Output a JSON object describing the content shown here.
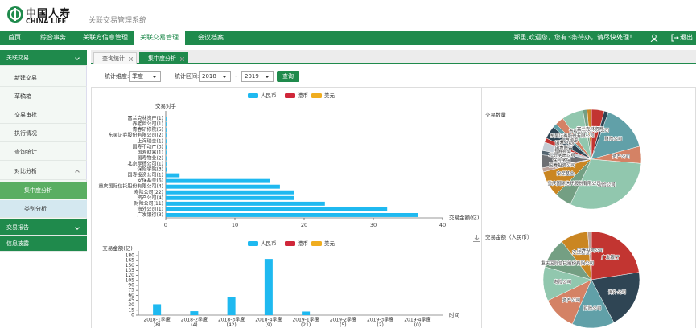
{
  "header": {
    "logo_cn": "中国人寿",
    "logo_en": "CHINA LIFE",
    "system": "关联交易管理系统"
  },
  "nav": {
    "items": [
      "首页",
      "综合事务",
      "关联方信息管理",
      "关联交易管理",
      "会议档案"
    ],
    "active": 3,
    "welcome": "郑重,欢迎您，您有3条待办，请尽快处理！",
    "logout": "退出"
  },
  "sidebar": {
    "title": "关联交易",
    "items": [
      "新建交易",
      "草稿箱",
      "交易审批",
      "执行情况",
      "查询统计",
      "对比分析"
    ],
    "sub_items": [
      "集中度分析",
      "类别分析"
    ],
    "active_sub": 0,
    "sections": [
      "交易报告",
      "信息披露"
    ]
  },
  "tabs": {
    "items": [
      "查询统计",
      "集中度分析"
    ],
    "active": 1
  },
  "filter": {
    "dimension_label": "统计维度:",
    "dimension": "季度",
    "range_label": "统计区间:",
    "from": "2018",
    "separator": "-",
    "to": "2019",
    "button": "查询"
  },
  "chart_data": [
    {
      "type": "hbar",
      "y_label": "交易对手",
      "x_label": "交易金额(亿)",
      "categories": [
        "富兰克林资产(1)",
        "养老险公司(1)",
        "青春研修院(5)",
        "东吴证券股份有限公司(2)",
        "上海瑞金(1)",
        "国寿不动产(3)",
        "国寿财富(1)",
        "国寿物业(2)",
        "北京厚德公司(1)",
        "保险学院(3)",
        "国寿投资公司(1)",
        "安保基金(6)",
        "重庆国际信托股份有限公司(4)",
        "寿险公司(22)",
        "资产公司(4)",
        "财险公司(11)",
        "海外公司(1)",
        "广发银行(3)"
      ],
      "series": [
        {
          "name": "人民币",
          "color": "#1fb9f0",
          "values": [
            0.1,
            0.1,
            0.1,
            0.1,
            0.1,
            0.2,
            0.1,
            0.1,
            0.1,
            0.2,
            2,
            15,
            16.5,
            18.5,
            18.5,
            23,
            32,
            36.5
          ]
        },
        {
          "name": "港币",
          "color": "#d0273a",
          "values": [
            0,
            0,
            0,
            0,
            0,
            0,
            0,
            0,
            0,
            0,
            0,
            0,
            0,
            0,
            0,
            0,
            0,
            0
          ]
        },
        {
          "name": "美元",
          "color": "#f0ad1f",
          "values": [
            0,
            0,
            0,
            0,
            0,
            0,
            0,
            0,
            0,
            0,
            0,
            0,
            0,
            0,
            0,
            0,
            0,
            0
          ]
        }
      ],
      "xlim": [
        0,
        40
      ],
      "xticks": [
        0,
        10,
        20,
        30,
        40
      ]
    },
    {
      "type": "bar",
      "y_label": "交易金额(亿)",
      "x_label": "时间",
      "categories": [
        "2018-1季度",
        "2018-2季度",
        "2018-3季度",
        "2018-4季度",
        "2019-1季度",
        "2019-2季度",
        "2019-3季度",
        "2019-4季度"
      ],
      "category_counts": [
        "(8)",
        "(4)",
        "(42)",
        "(9)",
        "(21)",
        "(5)",
        "(2)",
        "(0)"
      ],
      "series": [
        {
          "name": "人民币",
          "color": "#1fb9f0",
          "values": [
            33,
            12,
            55,
            170,
            11,
            0,
            0,
            0
          ]
        },
        {
          "name": "港币",
          "color": "#d0273a",
          "values": [
            0,
            0,
            0,
            0,
            0,
            0,
            0,
            0
          ]
        },
        {
          "name": "美元",
          "color": "#f0ad1f",
          "values": [
            0,
            0,
            0,
            0,
            0,
            0,
            0,
            0
          ]
        }
      ],
      "ylim": [
        0,
        180
      ],
      "yticks": [
        0,
        15,
        30,
        45,
        60,
        75,
        90,
        105,
        120,
        135,
        150,
        165,
        180
      ]
    },
    {
      "type": "pie",
      "title": "交易数量",
      "categories": [
        "广发银行",
        "海外公司",
        "财险公司",
        "资产公司",
        "寿险公司",
        "重庆国际信托股份有限公司",
        "安保基金",
        "国寿投资公司",
        "保险学院",
        "北京厚德公司",
        "国寿物业",
        "国寿财富",
        "国寿不动产",
        "上海瑞金",
        "东吴证券股份有限公司",
        "青春研修院",
        "养老险公司",
        "富兰克林资产"
      ],
      "values": [
        3,
        1,
        11,
        4,
        22,
        4,
        6,
        1,
        3,
        1,
        2,
        1,
        3,
        1,
        2,
        5,
        1,
        1
      ],
      "colors": [
        "#c23531",
        "#2f4554",
        "#61a0a8",
        "#d48265",
        "#91c7ae",
        "#749f83",
        "#ca8622",
        "#bda29a",
        "#6e7074",
        "#546570",
        "#c4ccd3"
      ]
    },
    {
      "type": "pie",
      "title": "交易金额（人民币）",
      "categories": [
        "广发银行",
        "海外公司",
        "财险公司",
        "资产公司",
        "寿险公司",
        "重庆国际信托股份有限公司",
        "安保基金",
        "国寿投资公司"
      ],
      "values": [
        36.5,
        32,
        23,
        18.5,
        18.5,
        16.5,
        15,
        2
      ],
      "colors": [
        "#c23531",
        "#2f4554",
        "#61a0a8",
        "#d48265",
        "#91c7ae",
        "#749f83",
        "#ca8622",
        "#bda29a"
      ]
    }
  ]
}
